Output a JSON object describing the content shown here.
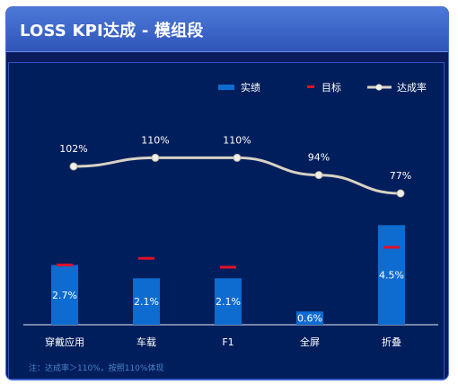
{
  "panel": {
    "title": "LOSS KPI达成 - 模组段"
  },
  "legend": {
    "actual": "实绩",
    "target": "目标",
    "rate": "达成率"
  },
  "footnote": "注：达成率＞110%，按照110%体现",
  "colors": {
    "bar": "#0e6bd0",
    "target": "#e0102a",
    "line": "#d8d2c4",
    "bg": "#001e5c"
  },
  "chart_data": {
    "type": "bar",
    "title": "LOSS KPI达成 - 模组段",
    "categories": [
      "穿戴应用",
      "车载",
      "F1",
      "全屏",
      "折叠"
    ],
    "series": [
      {
        "name": "实绩",
        "type": "bar",
        "values": [
          2.7,
          2.1,
          2.1,
          0.6,
          4.5
        ],
        "labels": [
          "2.7%",
          "2.1%",
          "2.1%",
          "0.6%",
          "4.5%"
        ]
      },
      {
        "name": "目标",
        "type": "marker",
        "values": [
          2.7,
          3.0,
          2.6,
          null,
          3.5
        ]
      },
      {
        "name": "达成率",
        "type": "line",
        "values": [
          102,
          110,
          110,
          94,
          77
        ],
        "labels": [
          "102%",
          "110%",
          "110%",
          "94%",
          "77%"
        ]
      }
    ],
    "legend_position": "top-right",
    "grid": false
  }
}
